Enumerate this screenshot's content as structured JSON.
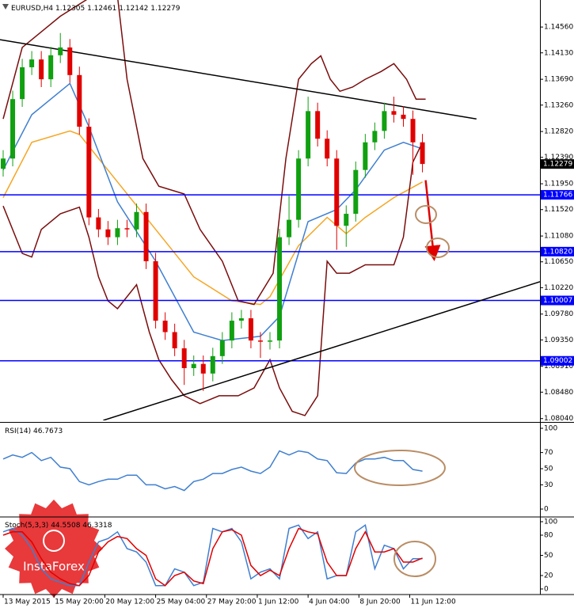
{
  "chart_data": [
    {
      "type": "candlestick",
      "title": "EURUSD,H4",
      "last_bar": [
        1.12305,
        1.12461,
        1.12142,
        1.12279
      ],
      "x": [
        0,
        3,
        6,
        9,
        12,
        15,
        18,
        21,
        24,
        27,
        30,
        33,
        36,
        39,
        42,
        45,
        48,
        51,
        54,
        57,
        60,
        63,
        66,
        69,
        72,
        75,
        78,
        81,
        84,
        87,
        90,
        93,
        96,
        99,
        102,
        105,
        108,
        111,
        114,
        117,
        120,
        123,
        126,
        129,
        132
      ],
      "open": [
        1.122,
        1.1237,
        1.1336,
        1.1389,
        1.1402,
        1.1369,
        1.1409,
        1.1422,
        1.1376,
        1.129,
        1.1139,
        1.1119,
        1.1106,
        1.1121,
        1.1119,
        1.1148,
        1.1066,
        1.0967,
        1.0948,
        1.0921,
        1.0888,
        1.0895,
        1.0879,
        1.0908,
        1.0934,
        1.0967,
        1.0971,
        1.0934,
        1.0932,
        1.0934,
        1.1106,
        1.1135,
        1.1237,
        1.1316,
        1.127,
        1.1237,
        1.1125,
        1.1145,
        1.1218,
        1.1264,
        1.1283,
        1.1316,
        1.131,
        1.1303,
        1.1264
      ],
      "high": [
        1.1251,
        1.135,
        1.1403,
        1.1416,
        1.1416,
        1.1423,
        1.1446,
        1.1436,
        1.139,
        1.1304,
        1.1153,
        1.1133,
        1.1135,
        1.1135,
        1.1162,
        1.1162,
        1.108,
        1.0981,
        1.0962,
        1.0935,
        1.0909,
        1.0909,
        1.0922,
        1.0948,
        1.0981,
        1.0985,
        1.0985,
        1.0948,
        1.0948,
        1.112,
        1.1175,
        1.1251,
        1.134,
        1.133,
        1.1284,
        1.1251,
        1.1159,
        1.1232,
        1.1278,
        1.1297,
        1.133,
        1.134,
        1.1324,
        1.1317,
        1.1278
      ],
      "low": [
        1.1207,
        1.1224,
        1.1323,
        1.1376,
        1.1356,
        1.1356,
        1.1396,
        1.1363,
        1.1277,
        1.1126,
        1.1106,
        1.1093,
        1.1093,
        1.1106,
        1.1106,
        1.1053,
        1.0954,
        1.0935,
        1.0908,
        1.086,
        1.0875,
        1.085,
        1.0866,
        1.0895,
        1.0921,
        1.0954,
        1.0921,
        1.0905,
        1.0919,
        1.0921,
        1.1093,
        1.1122,
        1.1224,
        1.1257,
        1.1224,
        1.1085,
        1.109,
        1.1132,
        1.1205,
        1.1251,
        1.127,
        1.1297,
        1.129,
        1.121,
        1.1214
      ],
      "close": [
        1.1237,
        1.1336,
        1.1389,
        1.1402,
        1.1369,
        1.1409,
        1.1422,
        1.1376,
        1.129,
        1.1139,
        1.1119,
        1.1106,
        1.1121,
        1.1119,
        1.1148,
        1.1066,
        1.0967,
        1.0948,
        1.0921,
        1.0888,
        1.0895,
        1.0879,
        1.0908,
        1.0934,
        1.0967,
        1.0971,
        1.0934,
        1.0932,
        1.0934,
        1.1106,
        1.1135,
        1.1237,
        1.1316,
        1.127,
        1.1237,
        1.1125,
        1.1145,
        1.1218,
        1.1264,
        1.1283,
        1.1316,
        1.131,
        1.1303,
        1.1264,
        1.1228
      ],
      "up_color": "#10a010",
      "down_color": "#e00000",
      "overlays": [
        {
          "color": "#f5a623",
          "x": [
            0,
            9,
            21,
            24,
            36,
            48,
            60,
            72,
            81,
            84,
            93,
            102,
            108,
            114,
            123,
            132
          ],
          "values": [
            1.1172,
            1.1264,
            1.1283,
            1.1277,
            1.1198,
            1.1119,
            1.104,
            1.1,
            1.0994,
            1.1007,
            1.1092,
            1.1139,
            1.1112,
            1.1139,
            1.1172,
            1.1198
          ]
        },
        {
          "color": "#3f7fd0",
          "x": [
            0,
            9,
            21,
            27,
            36,
            48,
            60,
            69,
            81,
            87,
            96,
            105,
            111,
            120,
            126,
            132
          ],
          "values": [
            1.1218,
            1.131,
            1.1362,
            1.129,
            1.1165,
            1.1066,
            1.0948,
            1.0934,
            1.0941,
            1.0974,
            1.1132,
            1.1152,
            1.1185,
            1.1251,
            1.1264,
            1.1253
          ]
        },
        {
          "color": "#7a0c0c",
          "x": [
            0,
            6,
            12,
            18,
            24,
            30,
            36,
            39,
            44,
            49,
            57,
            62,
            69,
            74,
            79,
            85,
            89,
            93,
            97,
            100,
            103,
            106,
            110,
            114,
            119,
            123,
            127,
            130,
            133
          ],
          "values": [
            1.1303,
            1.1422,
            1.1448,
            1.1474,
            1.1494,
            1.1514,
            1.1507,
            1.1369,
            1.1237,
            1.1191,
            1.1178,
            1.1119,
            1.1066,
            1.1,
            1.0994,
            1.1046,
            1.1237,
            1.1369,
            1.1395,
            1.1408,
            1.1369,
            1.1349,
            1.1356,
            1.1369,
            1.1382,
            1.1395,
            1.1369,
            1.1336,
            1.1336
          ]
        },
        {
          "color": "#7a0c0c",
          "x": [
            0,
            6,
            9,
            12,
            18,
            24,
            27,
            30,
            33,
            36,
            42,
            46,
            49,
            53,
            57,
            62,
            68,
            74,
            79,
            84,
            87,
            91,
            95,
            99,
            102,
            105,
            109,
            114,
            119,
            123,
            126,
            129,
            132
          ],
          "values": [
            1.1158,
            1.1079,
            1.1073,
            1.1119,
            1.1145,
            1.1156,
            1.1106,
            1.104,
            1.1,
            1.0987,
            1.1027,
            1.0948,
            1.0902,
            1.0869,
            1.0842,
            1.0829,
            1.0842,
            1.0842,
            1.0855,
            1.0902,
            1.0855,
            1.0816,
            1.0809,
            1.0842,
            1.1066,
            1.1046,
            1.1046,
            1.106,
            1.106,
            1.106,
            1.1106,
            1.1231,
            1.1264
          ]
        }
      ],
      "trendlines": [
        {
          "color": "#000000",
          "x": [
            -1,
            149
          ],
          "values": [
            1.1435,
            1.1303
          ]
        },
        {
          "color": "#000000",
          "x": [
            31.5,
            169
          ],
          "values": [
            1.0801,
            1.1032
          ]
        }
      ],
      "arrow": {
        "color": "#e00000",
        "x": [
          133,
          135.5
        ],
        "values": [
          1.1201,
          1.1079
        ]
      },
      "hlines": [
        1.11766,
        {
          "value": 1.1082,
          "label": "1.10820"
        },
        1.10007,
        1.09002
      ],
      "hline_color": "#0000ff",
      "last_price": 1.12279,
      "xlim": [
        -1,
        169
      ],
      "ylim": [
        1.0801,
        1.1501
      ],
      "yticks": [
        {
          "value": 1.1456,
          "label": "1.14560"
        },
        {
          "value": 1.1413,
          "label": "1.14130"
        },
        {
          "value": 1.1369,
          "label": "1.13690"
        },
        {
          "value": 1.1326,
          "label": "1.13260"
        },
        {
          "value": 1.1282,
          "label": "1.12820"
        },
        {
          "value": 1.1239,
          "label": "1.12390"
        },
        {
          "value": 1.1195,
          "label": "1.11950"
        },
        {
          "value": 1.1152,
          "label": "1.11520"
        },
        {
          "value": 1.1108,
          "label": "1.11080"
        },
        {
          "value": 1.1065,
          "label": "1.10650"
        },
        {
          "value": 1.1022,
          "label": "1.10220"
        },
        {
          "value": 1.0978,
          "label": "1.09780"
        },
        {
          "value": 1.0935,
          "label": "1.09350"
        },
        {
          "value": 1.0891,
          "label": "1.08910"
        },
        {
          "value": 1.0848,
          "label": "1.08480"
        },
        {
          "value": 1.0804,
          "label": "1.08040"
        }
      ],
      "xticks": [
        {
          "value": 0,
          "label": "13 May 2015"
        },
        {
          "value": 16,
          "label": "15 May 20:00"
        },
        {
          "value": 32,
          "label": "20 May 12:00"
        },
        {
          "value": 48,
          "label": "25 May 04:00"
        },
        {
          "value": 64,
          "label": "27 May 20:00"
        },
        {
          "value": 80,
          "label": "1 Jun 12:00"
        },
        {
          "value": 96,
          "label": "4 Jun 04:00"
        },
        {
          "value": 112,
          "label": "8 Jun 20:00"
        },
        {
          "value": 128,
          "label": "11 Jun 12:00"
        }
      ]
    },
    {
      "type": "line",
      "title": "RSI(14)",
      "last_values": [
        46.7673
      ],
      "x": [
        0,
        3,
        6,
        9,
        12,
        15,
        18,
        21,
        24,
        27,
        30,
        33,
        36,
        39,
        42,
        45,
        48,
        51,
        54,
        57,
        60,
        63,
        66,
        69,
        72,
        75,
        78,
        81,
        84,
        87,
        90,
        93,
        96,
        99,
        102,
        105,
        108,
        111,
        114,
        117,
        120,
        123,
        126,
        129,
        132
      ],
      "series": [
        {
          "color": "#3f7fd0",
          "values": [
            62,
            67,
            64,
            70,
            60,
            64,
            52,
            50,
            34,
            30,
            34,
            37,
            37,
            42,
            42,
            30,
            30,
            25,
            28,
            23,
            34,
            37,
            44,
            44,
            49,
            52,
            47,
            44,
            52,
            72,
            67,
            72,
            70,
            62,
            60,
            45,
            44,
            57,
            62,
            62,
            64,
            60,
            60,
            49,
            47
          ]
        }
      ],
      "xlim": [
        -1,
        169
      ],
      "ylim": [
        -8.8,
        105.9
      ],
      "yticks": [
        100,
        70,
        50,
        30,
        0
      ]
    },
    {
      "type": "line",
      "title": "Stoch(5,3,3)",
      "last_values": [
        44.5508,
        46.3318
      ],
      "x": [
        0,
        3,
        6,
        9,
        12,
        15,
        18,
        21,
        24,
        27,
        30,
        33,
        36,
        39,
        42,
        45,
        48,
        51,
        54,
        57,
        60,
        63,
        66,
        69,
        72,
        75,
        78,
        81,
        84,
        87,
        90,
        93,
        96,
        99,
        102,
        105,
        108,
        111,
        114,
        117,
        120,
        123,
        126,
        129,
        132
      ],
      "series": [
        {
          "color": "#3f7fd0",
          "values": [
            85,
            90,
            80,
            60,
            30,
            15,
            10,
            5,
            5,
            40,
            70,
            75,
            85,
            60,
            55,
            40,
            5,
            5,
            30,
            25,
            5,
            10,
            90,
            85,
            90,
            70,
            15,
            25,
            30,
            15,
            90,
            95,
            75,
            85,
            15,
            20,
            20,
            85,
            95,
            30,
            65,
            60,
            30,
            45,
            45
          ]
        },
        {
          "color": "#e00000",
          "values": [
            80,
            85,
            85,
            70,
            45,
            25,
            15,
            8,
            5,
            20,
            55,
            70,
            78,
            75,
            60,
            50,
            15,
            5,
            20,
            25,
            12,
            8,
            60,
            85,
            88,
            80,
            35,
            20,
            28,
            20,
            60,
            90,
            85,
            82,
            40,
            20,
            20,
            60,
            85,
            55,
            55,
            60,
            40,
            40,
            46
          ]
        }
      ],
      "xlim": [
        -1,
        169
      ],
      "ylim": [
        -7.1,
        105.9
      ],
      "yticks": [
        100,
        80,
        50,
        20,
        0
      ]
    }
  ]
}
